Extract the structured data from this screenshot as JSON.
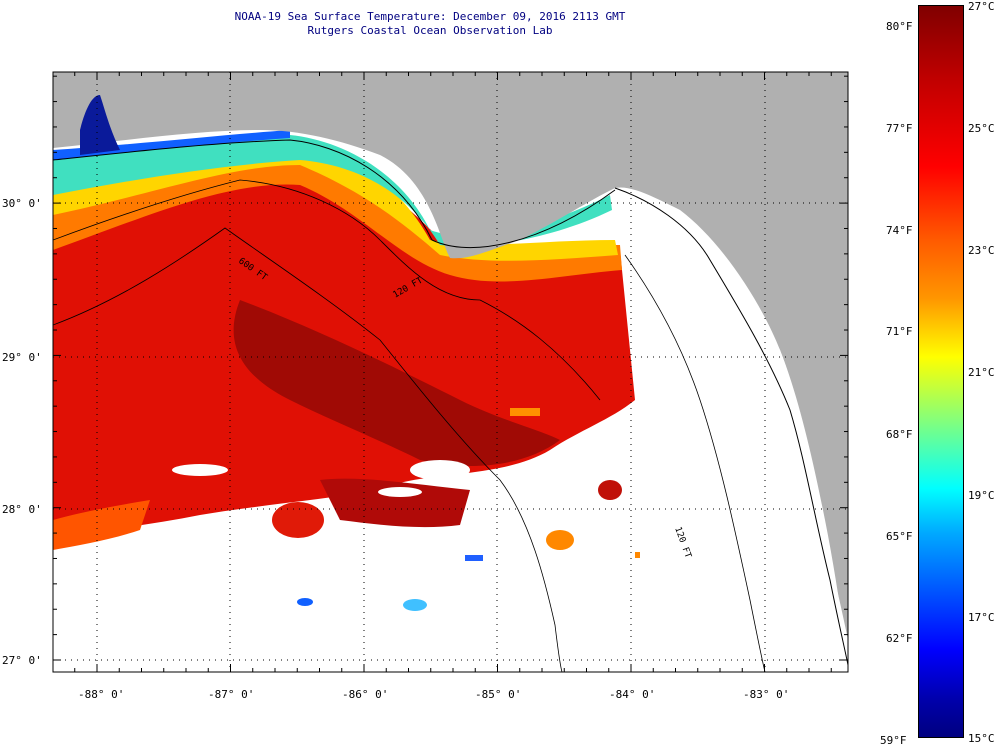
{
  "title": {
    "line1": "NOAA-19 Sea Surface Temperature:  December 09, 2016 2113 GMT",
    "line2": "Rutgers Coastal Ocean Observation Lab"
  },
  "lat_labels": [
    "30° 0'",
    "29° 0'",
    "28° 0'",
    "27° 0'"
  ],
  "lon_labels": [
    "-88° 0'",
    "-87° 0'",
    "-86° 0'",
    "-85° 0'",
    "-84° 0'",
    "-83° 0'"
  ],
  "contour_labels": [
    "120 FT",
    "600 FT",
    "120 FT"
  ],
  "colorbar": {
    "fahrenheit": [
      "80°F",
      "77°F",
      "74°F",
      "71°F",
      "68°F",
      "65°F",
      "62°F",
      "59°F"
    ],
    "celsius": [
      "27°C",
      "25°C",
      "23°C",
      "21°C",
      "19°C",
      "17°C",
      "15°C"
    ]
  },
  "colors": {
    "land": "#b0b0b0",
    "no_data": "#ffffff",
    "title": "#000080",
    "grid": "#000000"
  }
}
